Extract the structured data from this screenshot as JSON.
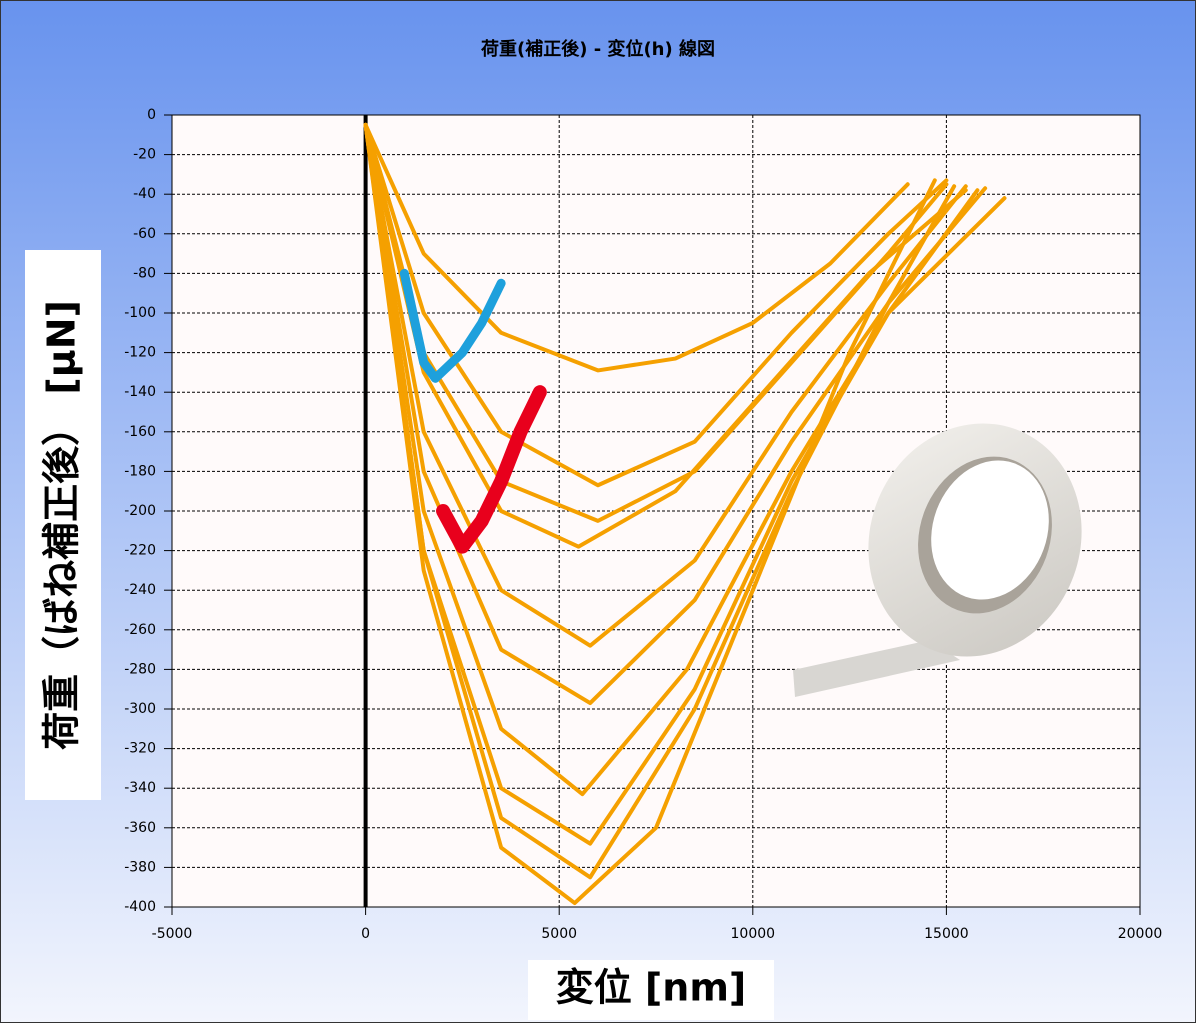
{
  "chart_data": {
    "type": "line",
    "title": "荷重(補正後) - 変位(h) 線図",
    "x_label": "変位 [nm]",
    "y_label": "荷重（ばね補正後） [μN]",
    "xlim": [
      -5000,
      20000
    ],
    "xticks": [
      -5000,
      0,
      5000,
      10000,
      15000,
      20000
    ],
    "ylim": [
      -400,
      0
    ],
    "yticks": [
      0,
      -20,
      -40,
      -60,
      -80,
      -100,
      -120,
      -140,
      -160,
      -180,
      -200,
      -220,
      -240,
      -260,
      -280,
      -300,
      -320,
      -340,
      -360,
      -380,
      -400
    ],
    "grid": true,
    "series": [
      {
        "color": "#000000",
        "x": [
          0,
          0
        ],
        "values": [
          0,
          -400
        ]
      },
      {
        "color": "#f5a000",
        "x": [
          0,
          1500,
          3500,
          6000,
          8000,
          10000,
          12000,
          14000
        ],
        "values": [
          -5,
          -70,
          -110,
          -129,
          -123,
          -105,
          -75,
          -35
        ]
      },
      {
        "color": "#f5a000",
        "x": [
          0,
          1500,
          3500,
          6000,
          8500,
          11000,
          13500,
          15000
        ],
        "values": [
          -5,
          -100,
          -160,
          -187,
          -165,
          -110,
          -60,
          -33
        ]
      },
      {
        "color": "#f5a000",
        "x": [
          0,
          1500,
          3500,
          6000,
          8500,
          11000,
          13500,
          15000
        ],
        "values": [
          -5,
          -120,
          -185,
          -205,
          -180,
          -125,
          -70,
          -35
        ]
      },
      {
        "color": "#f5a000",
        "x": [
          0,
          1500,
          3500,
          5500,
          8000,
          10500,
          13000,
          15500
        ],
        "values": [
          -5,
          -130,
          -200,
          -218,
          -190,
          -135,
          -80,
          -38
        ]
      },
      {
        "color": "#f5a000",
        "x": [
          0,
          1500,
          3500,
          5800,
          8500,
          11000,
          13500,
          15500
        ],
        "values": [
          -5,
          -160,
          -240,
          -268,
          -225,
          -150,
          -85,
          -36
        ]
      },
      {
        "color": "#f5a000",
        "x": [
          0,
          1500,
          3500,
          5800,
          8500,
          11000,
          13500,
          16000
        ],
        "values": [
          -5,
          -180,
          -270,
          -297,
          -245,
          -165,
          -95,
          -37
        ]
      },
      {
        "color": "#f5a000",
        "x": [
          0,
          1500,
          3500,
          5600,
          8300,
          11000,
          13500,
          15800
        ],
        "values": [
          -5,
          -200,
          -310,
          -343,
          -280,
          -180,
          -100,
          -38
        ]
      },
      {
        "color": "#f5a000",
        "x": [
          0,
          1500,
          3500,
          5800,
          8500,
          11000,
          13500,
          16500
        ],
        "values": [
          -5,
          -220,
          -340,
          -368,
          -290,
          -185,
          -100,
          -42
        ]
      },
      {
        "color": "#f5a000",
        "x": [
          0,
          1500,
          3500,
          5400,
          7500,
          10000,
          12500,
          14700
        ],
        "values": [
          -5,
          -230,
          -370,
          -398,
          -360,
          -240,
          -120,
          -33
        ]
      },
      {
        "color": "#f5a000",
        "x": [
          0,
          1500,
          3500,
          5800,
          8500,
          11000,
          13500,
          15200
        ],
        "values": [
          -5,
          -220,
          -355,
          -385,
          -300,
          -190,
          -95,
          -36
        ]
      },
      {
        "color": "#1ea0dc",
        "x": [
          1000,
          1500,
          1800,
          2500,
          3000,
          3500
        ],
        "values": [
          -80,
          -125,
          -133,
          -120,
          -105,
          -85
        ]
      },
      {
        "color": "#e8001c",
        "x": [
          2000,
          2500,
          3000,
          3500,
          4000,
          4500
        ],
        "values": [
          -200,
          -218,
          -205,
          -185,
          -160,
          -140
        ]
      }
    ]
  }
}
